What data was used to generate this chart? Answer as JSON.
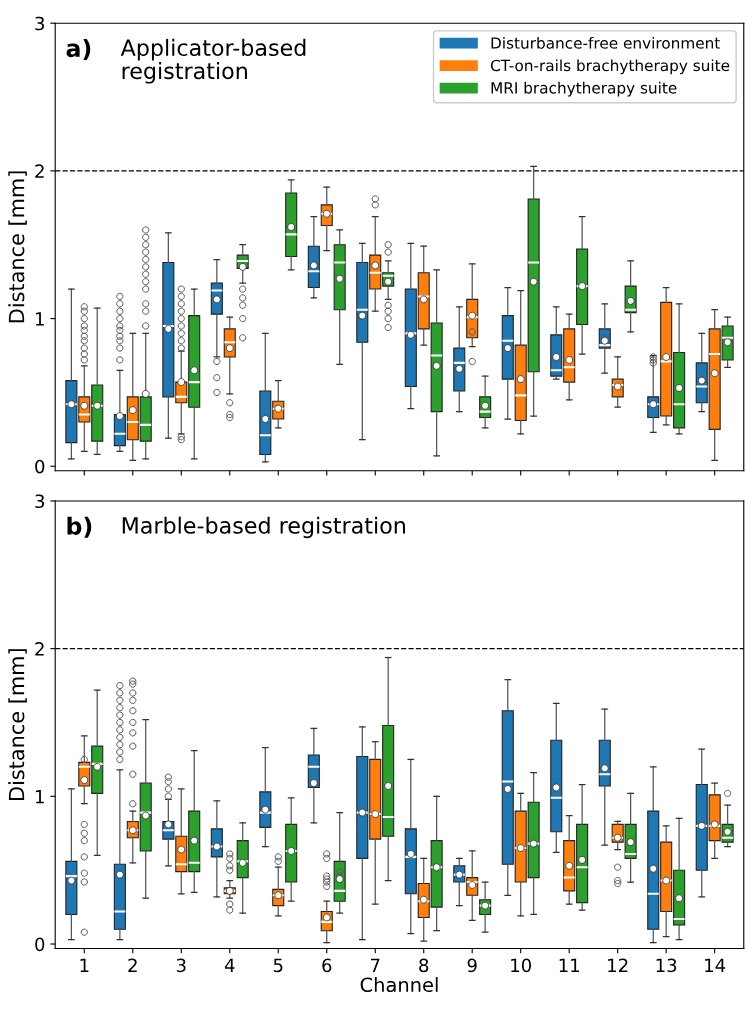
{
  "chart_data": [
    {
      "type": "box",
      "title": "Applicator-based\nregistration",
      "annotations": [
        "a)"
      ],
      "ylabel": "Distance [mm]",
      "categories": [
        "1",
        "2",
        "3",
        "4",
        "5",
        "6",
        "7",
        "8",
        "9",
        "10",
        "11",
        "12",
        "13",
        "14"
      ],
      "ylim": [
        -0.03,
        3
      ],
      "yticks": [
        0,
        1,
        2,
        3
      ],
      "tick_labels": "y",
      "legend": "top right",
      "ref_lines": [
        {
          "axis": "y",
          "value": 2,
          "line_style": "dashed",
          "color": "#000000"
        }
      ],
      "series": [
        {
          "name": "Disturbance-free environment",
          "color": "#1f77b4",
          "boxes": [
            {
              "low": 0.05,
              "q1": 0.16,
              "median": 0.42,
              "q3": 0.58,
              "high": 1.2,
              "mean": 0.42
            },
            {
              "low": 0.1,
              "q1": 0.14,
              "median": 0.22,
              "q3": 0.35,
              "high": 0.65,
              "mean": 0.34,
              "outliers": [
                0.72,
                0.8,
                0.85,
                0.88,
                0.92,
                0.95,
                1.0,
                1.05,
                1.1,
                1.15
              ]
            },
            {
              "low": 0.19,
              "q1": 0.47,
              "median": 0.95,
              "q3": 1.38,
              "high": 1.58,
              "mean": 0.93
            },
            {
              "low": 0.74,
              "q1": 1.03,
              "median": 1.19,
              "q3": 1.24,
              "high": 1.4,
              "mean": 1.13,
              "outliers": [
                0.71,
                0.6,
                0.5
              ]
            },
            {
              "low": 0.03,
              "q1": 0.08,
              "median": 0.21,
              "q3": 0.51,
              "high": 0.9,
              "mean": 0.32
            },
            {
              "low": 1.14,
              "q1": 1.21,
              "median": 1.32,
              "q3": 1.49,
              "high": 1.69,
              "mean": 1.36
            },
            {
              "low": 0.18,
              "q1": 0.84,
              "median": 1.06,
              "q3": 1.38,
              "high": 1.51,
              "mean": 1.02
            },
            {
              "low": 0.39,
              "q1": 0.54,
              "median": 0.9,
              "q3": 1.2,
              "high": 1.51,
              "mean": 0.89
            },
            {
              "low": 0.37,
              "q1": 0.51,
              "median": 0.7,
              "q3": 0.8,
              "high": 1.08,
              "mean": 0.66
            },
            {
              "low": 0.32,
              "q1": 0.59,
              "median": 0.85,
              "q3": 1.02,
              "high": 1.21,
              "mean": 0.8
            },
            {
              "low": 0.59,
              "q1": 0.61,
              "median": 0.65,
              "q3": 0.89,
              "high": 1.08,
              "mean": 0.74
            },
            {
              "low": 0.63,
              "q1": 0.8,
              "median": 0.82,
              "q3": 0.93,
              "high": 1.1,
              "mean": 0.85,
              "outliers": [
                0.87,
                0.83
              ]
            },
            {
              "low": 0.23,
              "q1": 0.33,
              "median": 0.42,
              "q3": 0.47,
              "high": 0.75,
              "mean": 0.42,
              "outliers": [
                0.74,
                0.72,
                0.7
              ]
            },
            {
              "low": 0.37,
              "q1": 0.43,
              "median": 0.54,
              "q3": 0.7,
              "high": 0.9,
              "mean": 0.58
            }
          ]
        },
        {
          "name": "CT-on-rails brachytherapy suite",
          "color": "#ff7f0e",
          "boxes": [
            {
              "low": 0.1,
              "q1": 0.3,
              "median": 0.35,
              "q3": 0.47,
              "high": 0.68,
              "mean": 0.41,
              "outliers": [
                0.72,
                0.76,
                0.8,
                0.85,
                0.88,
                0.92,
                0.95,
                1.0,
                1.05,
                1.08
              ]
            },
            {
              "low": 0.04,
              "q1": 0.18,
              "median": 0.3,
              "q3": 0.47,
              "high": 0.9,
              "mean": 0.38
            },
            {
              "low": 0.22,
              "q1": 0.43,
              "median": 0.47,
              "q3": 0.57,
              "high": 0.78,
              "mean": 0.57,
              "outliers": [
                0.18,
                0.2,
                0.8,
                0.85,
                0.9,
                0.95,
                1.0,
                1.05,
                1.1,
                1.15,
                1.2
              ]
            },
            {
              "low": 0.49,
              "q1": 0.74,
              "median": 0.84,
              "q3": 0.93,
              "high": 1.01,
              "mean": 0.8,
              "outliers": [
                0.43,
                0.35,
                0.33
              ]
            },
            {
              "low": 0.26,
              "q1": 0.32,
              "median": 0.39,
              "q3": 0.44,
              "high": 0.58,
              "mean": 0.39
            },
            {
              "low": 1.46,
              "q1": 1.63,
              "median": 1.71,
              "q3": 1.77,
              "high": 1.89,
              "mean": 1.71
            },
            {
              "low": 1.05,
              "q1": 1.2,
              "median": 1.31,
              "q3": 1.43,
              "high": 1.69,
              "mean": 1.36,
              "outliers": [
                1.81,
                1.77
              ]
            },
            {
              "low": 0.82,
              "q1": 0.93,
              "median": 1.15,
              "q3": 1.31,
              "high": 1.49,
              "mean": 1.13
            },
            {
              "low": 0.81,
              "q1": 0.87,
              "median": 1.01,
              "q3": 1.13,
              "high": 1.37,
              "mean": 1.02,
              "outliers": [
                0.91,
                0.71
              ]
            },
            {
              "low": 0.22,
              "q1": 0.31,
              "median": 0.48,
              "q3": 0.82,
              "high": 1.19,
              "mean": 0.59
            },
            {
              "low": 0.45,
              "q1": 0.57,
              "median": 0.67,
              "q3": 0.93,
              "high": 1.03,
              "mean": 0.72
            },
            {
              "low": 0.4,
              "q1": 0.47,
              "median": 0.55,
              "q3": 0.59,
              "high": 0.74,
              "mean": 0.54
            },
            {
              "low": 0.28,
              "q1": 0.34,
              "median": 0.71,
              "q3": 1.11,
              "high": 1.21,
              "mean": 0.74
            },
            {
              "low": 0.04,
              "q1": 0.25,
              "median": 0.76,
              "q3": 0.93,
              "high": 1.06,
              "mean": 0.63
            }
          ]
        },
        {
          "name": "MRI brachytherapy suite",
          "color": "#2ca02c",
          "boxes": [
            {
              "low": 0.08,
              "q1": 0.17,
              "median": 0.41,
              "q3": 0.55,
              "high": 1.07,
              "mean": 0.41
            },
            {
              "low": 0.05,
              "q1": 0.17,
              "median": 0.28,
              "q3": 0.47,
              "high": 0.9,
              "mean": 0.49,
              "outliers": [
                0.95,
                1.05,
                1.1,
                1.2,
                1.25,
                1.3,
                1.35,
                1.4,
                1.45,
                1.5,
                1.55,
                1.6
              ]
            },
            {
              "low": 0.05,
              "q1": 0.4,
              "median": 0.57,
              "q3": 1.02,
              "high": 1.2,
              "mean": 0.65
            },
            {
              "low": 1.24,
              "q1": 1.34,
              "median": 1.39,
              "q3": 1.43,
              "high": 1.5,
              "mean": 1.35,
              "outliers": [
                1.2,
                1.14,
                1.09,
                1.0,
                0.87
              ]
            },
            {
              "low": 1.33,
              "q1": 1.42,
              "median": 1.57,
              "q3": 1.85,
              "high": 1.94,
              "mean": 1.62
            },
            {
              "low": 0.69,
              "q1": 1.06,
              "median": 1.38,
              "q3": 1.5,
              "high": 1.6,
              "mean": 1.27
            },
            {
              "low": 1.13,
              "q1": 1.22,
              "median": 1.29,
              "q3": 1.31,
              "high": 1.39,
              "mean": 1.25,
              "outliers": [
                1.5,
                1.45,
                1.09,
                1.05,
                1.0,
                0.94
              ]
            },
            {
              "low": 0.07,
              "q1": 0.37,
              "median": 0.75,
              "q3": 0.97,
              "high": 1.33,
              "mean": 0.68
            },
            {
              "low": 0.26,
              "q1": 0.33,
              "median": 0.37,
              "q3": 0.47,
              "high": 0.61,
              "mean": 0.41
            },
            {
              "low": 0.34,
              "q1": 0.64,
              "median": 1.38,
              "q3": 1.81,
              "high": 2.03,
              "mean": 1.25
            },
            {
              "low": 0.76,
              "q1": 0.96,
              "median": 1.22,
              "q3": 1.47,
              "high": 1.69,
              "mean": 1.22
            },
            {
              "low": 0.91,
              "q1": 1.04,
              "median": 1.06,
              "q3": 1.22,
              "high": 1.39,
              "mean": 1.12
            },
            {
              "low": 0.22,
              "q1": 0.26,
              "median": 0.42,
              "q3": 0.77,
              "high": 1.1,
              "mean": 0.53
            },
            {
              "low": 0.67,
              "q1": 0.72,
              "median": 0.87,
              "q3": 0.95,
              "high": 1.01,
              "mean": 0.84
            }
          ]
        }
      ]
    },
    {
      "type": "box",
      "title": "Marble-based registration",
      "annotations": [
        "b)"
      ],
      "ylabel": "Distance [mm]",
      "xlabel": "Channel",
      "categories": [
        "1",
        "2",
        "3",
        "4",
        "5",
        "6",
        "7",
        "8",
        "9",
        "10",
        "11",
        "12",
        "13",
        "14"
      ],
      "ylim": [
        -0.03,
        3
      ],
      "yticks": [
        0,
        1,
        2,
        3
      ],
      "ref_lines": [
        {
          "axis": "y",
          "value": 2,
          "line_style": "dashed",
          "color": "#000000"
        }
      ],
      "series": [
        {
          "color": "#1f77b4",
          "boxes": [
            {
              "low": 0.03,
              "q1": 0.2,
              "median": 0.46,
              "q3": 0.56,
              "high": 1.05,
              "mean": 0.43
            },
            {
              "low": 0.03,
              "q1": 0.1,
              "median": 0.22,
              "q3": 0.54,
              "high": 1.18,
              "mean": 0.47,
              "outliers": [
                1.25,
                1.3,
                1.35,
                1.4,
                1.45,
                1.5,
                1.55,
                1.6,
                1.65,
                1.7,
                1.75
              ]
            },
            {
              "low": 0.53,
              "q1": 0.71,
              "median": 0.77,
              "q3": 0.83,
              "high": 0.98,
              "mean": 0.81,
              "outliers": [
                1.0,
                1.05,
                1.1,
                1.13
              ]
            },
            {
              "low": 0.32,
              "q1": 0.59,
              "median": 0.66,
              "q3": 0.78,
              "high": 0.97,
              "mean": 0.66
            },
            {
              "low": 0.66,
              "q1": 0.79,
              "median": 0.89,
              "q3": 1.03,
              "high": 1.33,
              "mean": 0.91
            },
            {
              "low": 0.82,
              "q1": 1.06,
              "median": 1.2,
              "q3": 1.28,
              "high": 1.46,
              "mean": 1.09
            },
            {
              "low": 0.03,
              "q1": 0.58,
              "median": 0.89,
              "q3": 1.27,
              "high": 1.47,
              "mean": 0.89
            },
            {
              "low": 0.07,
              "q1": 0.34,
              "median": 0.59,
              "q3": 0.78,
              "high": 1.25,
              "mean": 0.61
            },
            {
              "low": 0.26,
              "q1": 0.42,
              "median": 0.47,
              "q3": 0.53,
              "high": 0.58,
              "mean": 0.47
            },
            {
              "low": 0.33,
              "q1": 0.54,
              "median": 1.1,
              "q3": 1.58,
              "high": 1.79,
              "mean": 1.05
            },
            {
              "low": 0.62,
              "q1": 0.76,
              "median": 0.99,
              "q3": 1.38,
              "high": 1.63,
              "mean": 1.06
            },
            {
              "low": 0.67,
              "q1": 1.07,
              "median": 1.15,
              "q3": 1.38,
              "high": 1.59,
              "mean": 1.19
            },
            {
              "low": 0.01,
              "q1": 0.1,
              "median": 0.34,
              "q3": 0.9,
              "high": 1.2,
              "mean": 0.51
            },
            {
              "low": 0.32,
              "q1": 0.5,
              "median": 0.8,
              "q3": 1.08,
              "high": 1.32,
              "mean": 0.8
            }
          ]
        },
        {
          "color": "#ff7f0e",
          "boxes": [
            {
              "low": 0.95,
              "q1": 1.07,
              "median": 1.2,
              "q3": 1.23,
              "high": 1.41,
              "mean": 1.11,
              "outliers": [
                1.25,
                0.81,
                0.75,
                0.7,
                0.59,
                0.48,
                0.42,
                0.08
              ]
            },
            {
              "low": 0.55,
              "q1": 0.72,
              "median": 0.77,
              "q3": 0.83,
              "high": 0.9,
              "mean": 0.77,
              "outliers": [
                0.95,
                1.15,
                1.34,
                1.43,
                1.5,
                1.58,
                1.65,
                1.7,
                1.76,
                1.78
              ]
            },
            {
              "low": 0.34,
              "q1": 0.49,
              "median": 0.54,
              "q3": 0.73,
              "high": 1.05,
              "mean": 0.64
            },
            {
              "low": 0.31,
              "q1": 0.34,
              "median": 0.36,
              "q3": 0.38,
              "high": 0.43,
              "mean": 0.36,
              "outliers": [
                0.61,
                0.58,
                0.53,
                0.5,
                0.27,
                0.23
              ]
            },
            {
              "low": 0.19,
              "q1": 0.26,
              "median": 0.33,
              "q3": 0.37,
              "high": 0.52,
              "mean": 0.33,
              "outliers": [
                0.59,
                0.56
              ]
            },
            {
              "low": 0.01,
              "q1": 0.09,
              "median": 0.15,
              "q3": 0.22,
              "high": 0.29,
              "mean": 0.18,
              "outliers": [
                0.61,
                0.58,
                0.46,
                0.44,
                0.42,
                0.39
              ]
            },
            {
              "low": 0.27,
              "q1": 0.71,
              "median": 0.88,
              "q3": 1.25,
              "high": 1.37,
              "mean": 0.88
            },
            {
              "low": 0.02,
              "q1": 0.18,
              "median": 0.29,
              "q3": 0.41,
              "high": 0.58,
              "mean": 0.3
            },
            {
              "low": 0.16,
              "q1": 0.33,
              "median": 0.42,
              "q3": 0.45,
              "high": 0.63,
              "mean": 0.4
            },
            {
              "low": 0.19,
              "q1": 0.42,
              "median": 0.65,
              "q3": 0.9,
              "high": 1.02,
              "mean": 0.65
            },
            {
              "low": 0.27,
              "q1": 0.36,
              "median": 0.45,
              "q3": 0.7,
              "high": 0.87,
              "mean": 0.53
            },
            {
              "low": 0.64,
              "q1": 0.69,
              "median": 0.72,
              "q3": 0.81,
              "high": 0.83,
              "mean": 0.72,
              "outliers": [
                0.52,
                0.43,
                0.41
              ]
            },
            {
              "low": 0.05,
              "q1": 0.22,
              "median": 0.43,
              "q3": 0.69,
              "high": 0.8,
              "mean": 0.43
            },
            {
              "low": 0.58,
              "q1": 0.7,
              "median": 0.8,
              "q3": 1.01,
              "high": 1.09,
              "mean": 0.81
            }
          ]
        },
        {
          "color": "#2ca02c",
          "boxes": [
            {
              "low": 0.6,
              "q1": 1.02,
              "median": 1.22,
              "q3": 1.34,
              "high": 1.72,
              "mean": 1.2
            },
            {
              "low": 0.31,
              "q1": 0.63,
              "median": 0.89,
              "q3": 1.09,
              "high": 1.52,
              "mean": 0.87
            },
            {
              "low": 0.35,
              "q1": 0.49,
              "median": 0.55,
              "q3": 0.9,
              "high": 1.31,
              "mean": 0.7
            },
            {
              "low": 0.21,
              "q1": 0.45,
              "median": 0.56,
              "q3": 0.7,
              "high": 0.82,
              "mean": 0.55
            },
            {
              "low": 0.29,
              "q1": 0.42,
              "median": 0.63,
              "q3": 0.81,
              "high": 0.99,
              "mean": 0.63
            },
            {
              "low": 0.21,
              "q1": 0.29,
              "median": 0.36,
              "q3": 0.56,
              "high": 0.89,
              "mean": 0.44,
              "outliers": [
                0.49,
                0.46
              ]
            },
            {
              "low": 0.43,
              "q1": 0.73,
              "median": 0.86,
              "q3": 1.48,
              "high": 1.94,
              "mean": 1.07
            },
            {
              "low": 0.09,
              "q1": 0.25,
              "median": 0.52,
              "q3": 0.7,
              "high": 1.0,
              "mean": 0.52
            },
            {
              "low": 0.08,
              "q1": 0.2,
              "median": 0.26,
              "q3": 0.3,
              "high": 0.42,
              "mean": 0.26
            },
            {
              "low": 0.2,
              "q1": 0.45,
              "median": 0.68,
              "q3": 0.96,
              "high": 1.16,
              "mean": 0.68
            },
            {
              "low": 0.23,
              "q1": 0.28,
              "median": 0.52,
              "q3": 0.81,
              "high": 1.08,
              "mean": 0.57
            },
            {
              "low": 0.42,
              "q1": 0.58,
              "median": 0.61,
              "q3": 0.81,
              "high": 1.02,
              "mean": 0.69
            },
            {
              "low": 0.03,
              "q1": 0.13,
              "median": 0.17,
              "q3": 0.5,
              "high": 0.85,
              "mean": 0.31
            },
            {
              "low": 0.66,
              "q1": 0.69,
              "median": 0.72,
              "q3": 0.81,
              "high": 0.94,
              "mean": 0.76,
              "outliers": [
                1.02
              ]
            }
          ]
        }
      ]
    }
  ]
}
